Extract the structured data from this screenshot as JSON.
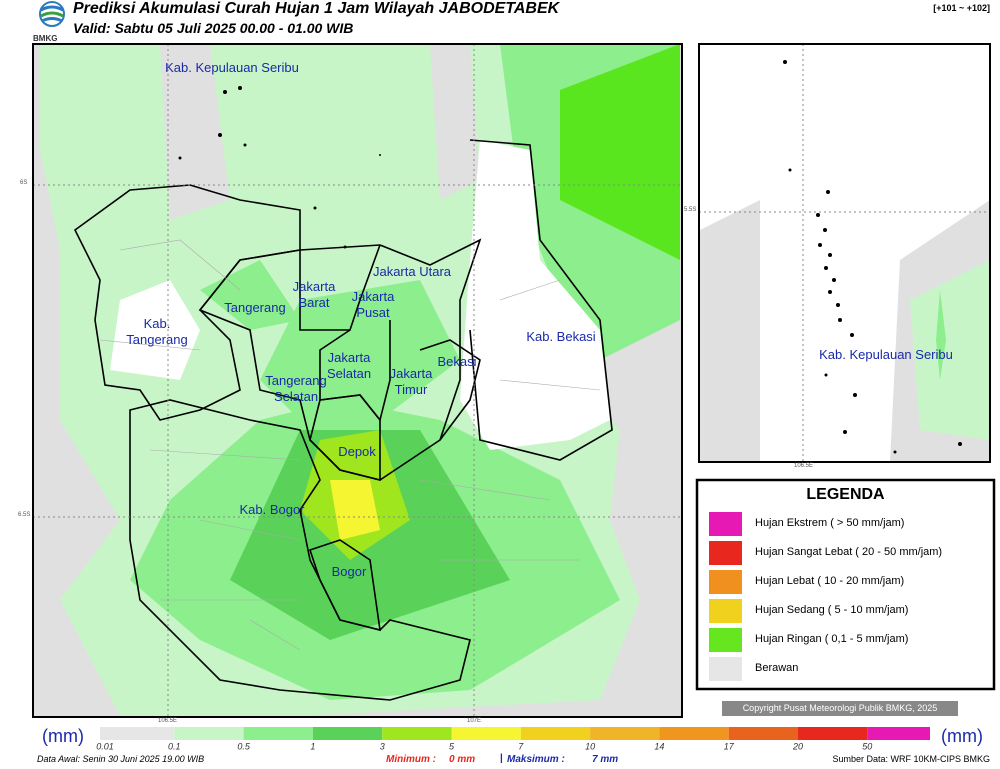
{
  "header": {
    "logo_text": "BMKG",
    "title": "Prediksi Akumulasi Curah Hujan 1 Jam Wilayah JABODETABEK",
    "subtitle": "Valid: Sabtu 05 Juli 2025 00.00 - 01.00 WIB",
    "code": "[+101 ~ +102]"
  },
  "map": {
    "labels": [
      "Kab. Kepulauan Seribu",
      "Jakarta Utara",
      "Jakarta Barat",
      "Tangerang",
      "Jakarta Pusat",
      "Kab. Tangerang",
      "Jakarta Selatan",
      "Jakarta Timur",
      "Bekasi",
      "Kab. Bekasi",
      "Tangerang Selatan",
      "Depok",
      "Kab. Bogor",
      "Bogor"
    ],
    "coordinates": [
      "6S",
      "6.5S",
      "106.5E",
      "107E"
    ]
  },
  "inset": {
    "label": "Kab. Kepulauan Seribu",
    "coordinates": [
      "5.5S",
      "106.5E"
    ]
  },
  "legend": {
    "title": "LEGENDA",
    "items": [
      {
        "label": "Hujan Ekstrem ( > 50 mm/jam)",
        "color": "#e619b4"
      },
      {
        "label": "Hujan Sangat Lebat ( 20 - 50 mm/jam)",
        "color": "#e8281e"
      },
      {
        "label": "Hujan Lebat ( 10 - 20 mm/jam)",
        "color": "#f0901e"
      },
      {
        "label": "Hujan Sedang ( 5 - 10 mm/jam)",
        "color": "#f0d21e"
      },
      {
        "label": "Hujan Ringan ( 0,1 - 5 mm/jam)",
        "color": "#66e61e"
      },
      {
        "label": "Berawan",
        "color": "#e6e6e6"
      }
    ]
  },
  "copyright": "Copyright Pusat Meteorologi Publik BMKG, 2025",
  "colorbar": {
    "unit": "(mm)",
    "ticks": [
      0.01,
      0.1,
      0.5,
      1,
      3,
      5,
      7,
      10,
      14,
      17,
      20,
      50
    ],
    "colors": [
      "#e6e6e6",
      "#c8f5c8",
      "#8cee8c",
      "#5ad25a",
      "#a0e61e",
      "#f5f532",
      "#f0d21e",
      "#f0b428",
      "#f0961e",
      "#e8641e",
      "#e8281e",
      "#e619b4"
    ]
  },
  "footer": {
    "data_awal": "Data Awal: Senin 30 Juni 2025 19.00 WIB",
    "minimum_label": "Minimum :",
    "minimum_value": "0 mm",
    "separator": "|",
    "maximum_label": "Maksimum :",
    "maximum_value": "7 mm",
    "source": "Sumber Data: WRF 10KM-CIPS BMKG"
  }
}
